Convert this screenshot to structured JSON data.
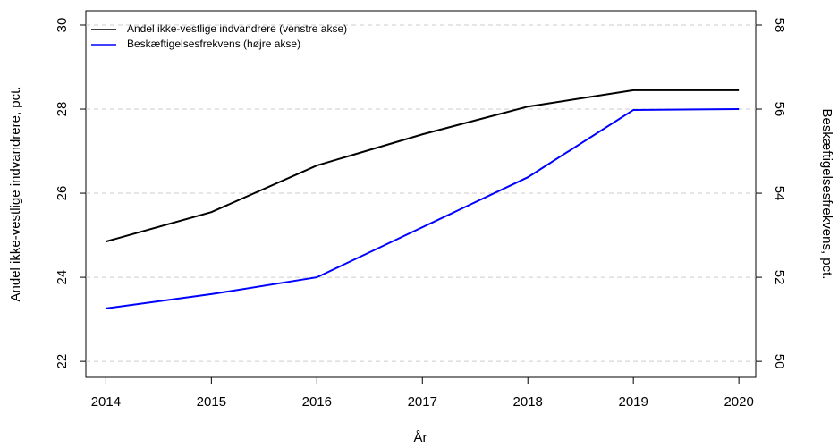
{
  "chart_data": {
    "type": "line",
    "x": [
      2014,
      2015,
      2016,
      2017,
      2018,
      2019,
      2020
    ],
    "xlabel": "År",
    "ylabel": "Andel ikke-vestlige indvandrere, pct.",
    "y2label": "Beskæftigelsesfrekvens, pct.",
    "series": [
      {
        "name": "Andel ikke-vestlige indvandrere (venstre akse)",
        "color": "#000000",
        "values": [
          24.85,
          25.55,
          26.66,
          27.4,
          28.06,
          28.45,
          28.45
        ]
      },
      {
        "name": "Beskæftigelsesfrekvens (højre akse)",
        "color": "#0000ff",
        "axis": "y2",
        "values": [
          51.26,
          51.6,
          52.0,
          53.19,
          54.38,
          55.98,
          56.0
        ]
      }
    ],
    "xlim": [
      2013.81,
      2020.16
    ],
    "xticks": [
      2014,
      2015,
      2016,
      2017,
      2018,
      2019,
      2020
    ],
    "ylim": [
      21.62,
      30.34
    ],
    "yticks": [
      22,
      24,
      26,
      28,
      30
    ],
    "y2lim": [
      49.62,
      58.34
    ],
    "y2ticks": [
      50,
      52,
      54,
      56,
      58
    ],
    "grid": true,
    "legend": "top-left"
  }
}
